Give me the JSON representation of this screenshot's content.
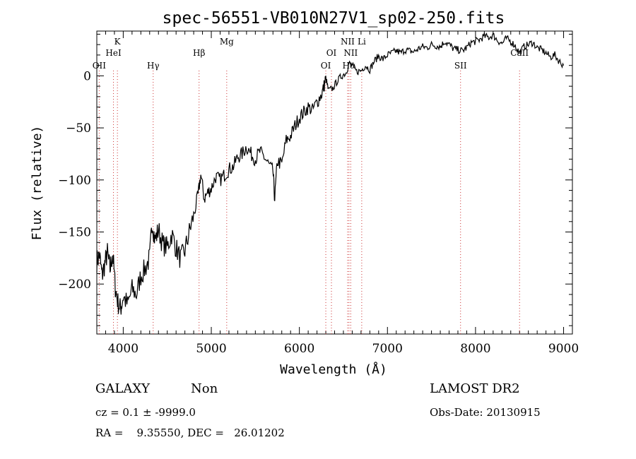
{
  "chart_data": {
    "type": "line",
    "title": "spec-56551-VB010N27V1_sp02-250.fits",
    "xlabel": "Wavelength (Å)",
    "ylabel": "Flux (relative)",
    "xlim": [
      3700,
      9100
    ],
    "ylim": [
      -248,
      43
    ],
    "xticks": [
      4000,
      5000,
      6000,
      7000,
      8000,
      9000
    ],
    "yticks": [
      0,
      -50,
      -100,
      -150,
      -200
    ],
    "grid": false,
    "series": [
      {
        "color": "#000000",
        "points": [
          [
            3700,
            -178
          ],
          [
            3730,
            -172
          ],
          [
            3760,
            -192
          ],
          [
            3790,
            -181
          ],
          [
            3820,
            -170
          ],
          [
            3850,
            -186
          ],
          [
            3880,
            -171
          ],
          [
            3910,
            -203
          ],
          [
            3940,
            -218
          ],
          [
            3970,
            -224
          ],
          [
            4000,
            -212
          ],
          [
            4050,
            -220
          ],
          [
            4100,
            -205
          ],
          [
            4150,
            -210
          ],
          [
            4200,
            -192
          ],
          [
            4250,
            -185
          ],
          [
            4300,
            -175
          ],
          [
            4330,
            -140
          ],
          [
            4360,
            -158
          ],
          [
            4400,
            -148
          ],
          [
            4450,
            -162
          ],
          [
            4500,
            -165
          ],
          [
            4550,
            -152
          ],
          [
            4600,
            -165
          ],
          [
            4650,
            -176
          ],
          [
            4700,
            -168
          ],
          [
            4750,
            -150
          ],
          [
            4800,
            -134
          ],
          [
            4850,
            -115
          ],
          [
            4880,
            -95
          ],
          [
            4920,
            -118
          ],
          [
            4960,
            -112
          ],
          [
            5000,
            -108
          ],
          [
            5050,
            -97
          ],
          [
            5100,
            -100
          ],
          [
            5150,
            -95
          ],
          [
            5200,
            -90
          ],
          [
            5250,
            -87
          ],
          [
            5300,
            -78
          ],
          [
            5350,
            -75
          ],
          [
            5400,
            -68
          ],
          [
            5450,
            -75
          ],
          [
            5500,
            -80
          ],
          [
            5550,
            -73
          ],
          [
            5600,
            -78
          ],
          [
            5650,
            -85
          ],
          [
            5700,
            -92
          ],
          [
            5720,
            -118
          ],
          [
            5750,
            -82
          ],
          [
            5800,
            -85
          ],
          [
            5850,
            -62
          ],
          [
            5900,
            -58
          ],
          [
            5950,
            -48
          ],
          [
            6000,
            -40
          ],
          [
            6050,
            -35
          ],
          [
            6100,
            -30
          ],
          [
            6150,
            -33
          ],
          [
            6200,
            -25
          ],
          [
            6250,
            -18
          ],
          [
            6280,
            -10
          ],
          [
            6300,
            -2
          ],
          [
            6330,
            -14
          ],
          [
            6380,
            -12
          ],
          [
            6430,
            -5
          ],
          [
            6480,
            0
          ],
          [
            6530,
            3
          ],
          [
            6563,
            12
          ],
          [
            6600,
            10
          ],
          [
            6650,
            4
          ],
          [
            6700,
            5
          ],
          [
            6750,
            10
          ],
          [
            6800,
            6
          ],
          [
            6850,
            14
          ],
          [
            6900,
            19
          ],
          [
            6950,
            16
          ],
          [
            7000,
            20
          ],
          [
            7050,
            22
          ],
          [
            7100,
            24
          ],
          [
            7150,
            22
          ],
          [
            7200,
            25
          ],
          [
            7250,
            24
          ],
          [
            7300,
            23
          ],
          [
            7350,
            26
          ],
          [
            7400,
            28
          ],
          [
            7450,
            27
          ],
          [
            7500,
            30
          ],
          [
            7550,
            29
          ],
          [
            7600,
            28
          ],
          [
            7650,
            33
          ],
          [
            7700,
            30
          ],
          [
            7750,
            26
          ],
          [
            7800,
            25
          ],
          [
            7850,
            24
          ],
          [
            7900,
            27
          ],
          [
            7950,
            32
          ],
          [
            8000,
            33
          ],
          [
            8050,
            35
          ],
          [
            8100,
            38
          ],
          [
            8150,
            37
          ],
          [
            8200,
            39
          ],
          [
            8250,
            34
          ],
          [
            8300,
            31
          ],
          [
            8350,
            36
          ],
          [
            8400,
            33
          ],
          [
            8450,
            29
          ],
          [
            8500,
            22
          ],
          [
            8550,
            28
          ],
          [
            8600,
            30
          ],
          [
            8650,
            32
          ],
          [
            8700,
            27
          ],
          [
            8750,
            25
          ],
          [
            8800,
            22
          ],
          [
            8850,
            18
          ],
          [
            8900,
            20
          ],
          [
            8950,
            14
          ],
          [
            9000,
            10
          ]
        ]
      }
    ],
    "lines": [
      {
        "label": "OII",
        "x": 3727,
        "row": 3
      },
      {
        "label": "K",
        "x": 3934,
        "row": 1
      },
      {
        "label": "HeI",
        "x": 3889,
        "row": 2
      },
      {
        "label": "Hγ",
        "x": 4340,
        "row": 3
      },
      {
        "label": "Hβ",
        "x": 4861,
        "row": 2
      },
      {
        "label": "Mg",
        "x": 5175,
        "row": 1
      },
      {
        "label": "OI",
        "x": 6300,
        "row": 3
      },
      {
        "label": "OI",
        "x": 6364,
        "row": 2
      },
      {
        "label": "NII",
        "x": 6548,
        "row": 1
      },
      {
        "label": "NII",
        "x": 6583,
        "row": 2
      },
      {
        "label": "Hα",
        "x": 6563,
        "row": 3
      },
      {
        "label": "Li",
        "x": 6708,
        "row": 1
      },
      {
        "label": "SII",
        "x": 7830,
        "row": 3
      },
      {
        "label": "CaII",
        "x": 8500,
        "row": 2
      }
    ]
  },
  "info": {
    "obj_class": "GALAXY",
    "subclass": "Non",
    "survey": "LAMOST DR2",
    "cz": "cz = 0.1 ± -9999.0",
    "obs_date": "Obs-Date: 20130915",
    "coords": "RA =    9.35550, DEC =   26.01202"
  }
}
